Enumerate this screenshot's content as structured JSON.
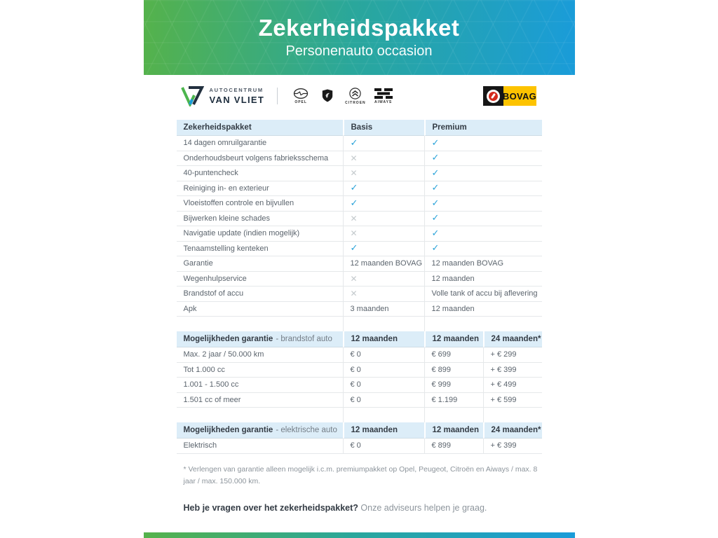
{
  "banner": {
    "title": "Zekerheidspakket",
    "subtitle": "Personenauto occasion"
  },
  "branding": {
    "autocentrum": "AUTOCENTRUM",
    "van_vliet": "VAN VLIET",
    "brands": {
      "opel": "OPEL",
      "peugeot": "",
      "citroen": "CITROEN",
      "aiways": "AIWAYS"
    },
    "bovag": "BOVAG"
  },
  "colors": {
    "gradient_green": "#55b24b",
    "gradient_blue": "#1a9cd9",
    "table_header_bg": "#dcedf8",
    "check_blue": "#2aa3d9",
    "cross_gray": "#c4cacd",
    "bovag_yellow": "#fdc300",
    "bovag_red": "#d42b1e"
  },
  "tables": [
    {
      "header": {
        "bold": "Zekerheidspakket",
        "rest": ""
      },
      "columns": [
        "Basis",
        "Premium"
      ],
      "spacer_after": true,
      "rows": [
        {
          "label": "14 dagen omruilgarantie",
          "cells": [
            "CHECK",
            "CHECK"
          ]
        },
        {
          "label": "Onderhoudsbeurt volgens fabrieksschema",
          "cells": [
            "CROSS",
            "CHECK"
          ]
        },
        {
          "label": "40-puntencheck",
          "cells": [
            "CROSS",
            "CHECK"
          ]
        },
        {
          "label": "Reiniging in- en exterieur",
          "cells": [
            "CHECK",
            "CHECK"
          ]
        },
        {
          "label": "Vloeistoffen controle en bijvullen",
          "cells": [
            "CHECK",
            "CHECK"
          ]
        },
        {
          "label": "Bijwerken kleine schades",
          "cells": [
            "CROSS",
            "CHECK"
          ]
        },
        {
          "label": "Navigatie update (indien mogelijk)",
          "cells": [
            "CROSS",
            "CHECK"
          ]
        },
        {
          "label": "Tenaamstelling kenteken",
          "cells": [
            "CHECK",
            "CHECK"
          ]
        },
        {
          "label": "Garantie",
          "cells": [
            "12 maanden BOVAG",
            "12 maanden BOVAG"
          ]
        },
        {
          "label": "Wegenhulpservice",
          "cells": [
            "CROSS",
            "12 maanden"
          ]
        },
        {
          "label": "Brandstof of accu",
          "cells": [
            "CROSS",
            "Volle tank of accu bij aflevering"
          ]
        },
        {
          "label": "Apk",
          "cells": [
            "3 maanden",
            "12 maanden"
          ]
        }
      ]
    },
    {
      "header": {
        "bold": "Mogelijkheden garantie",
        "rest": "- brandstof auto"
      },
      "columns": [
        "12 maanden",
        "12 maanden",
        "24 maanden*"
      ],
      "spacer_after": true,
      "rows": [
        {
          "label": "Max. 2 jaar / 50.000 km",
          "cells": [
            "€ 0",
            "€ 699",
            "+ € 299"
          ]
        },
        {
          "label": "Tot 1.000 cc",
          "cells": [
            "€ 0",
            "€ 899",
            "+ € 399"
          ]
        },
        {
          "label": "1.001 - 1.500 cc",
          "cells": [
            "€ 0",
            "€ 999",
            "+ € 499"
          ]
        },
        {
          "label": "1.501 cc of meer",
          "cells": [
            "€ 0",
            "€ 1.199",
            "+ € 599"
          ]
        }
      ]
    },
    {
      "header": {
        "bold": "Mogelijkheden garantie",
        "rest": "- elektrische auto"
      },
      "columns": [
        "12 maanden",
        "12 maanden",
        "24 maanden*"
      ],
      "spacer_after": false,
      "rows": [
        {
          "label": "Elektrisch",
          "cells": [
            "€ 0",
            "€ 899",
            "+ € 399"
          ]
        }
      ]
    }
  ],
  "footnote": "* Verlengen van garantie alleen mogelijk i.c.m. premiumpakket op Opel, Peugeot, Citroën en Aiways / max. 8 jaar / max. 150.000 km.",
  "closing": {
    "question": "Heb je vragen over het zekerheidspakket?",
    "answer": "Onze adviseurs helpen je graag."
  }
}
